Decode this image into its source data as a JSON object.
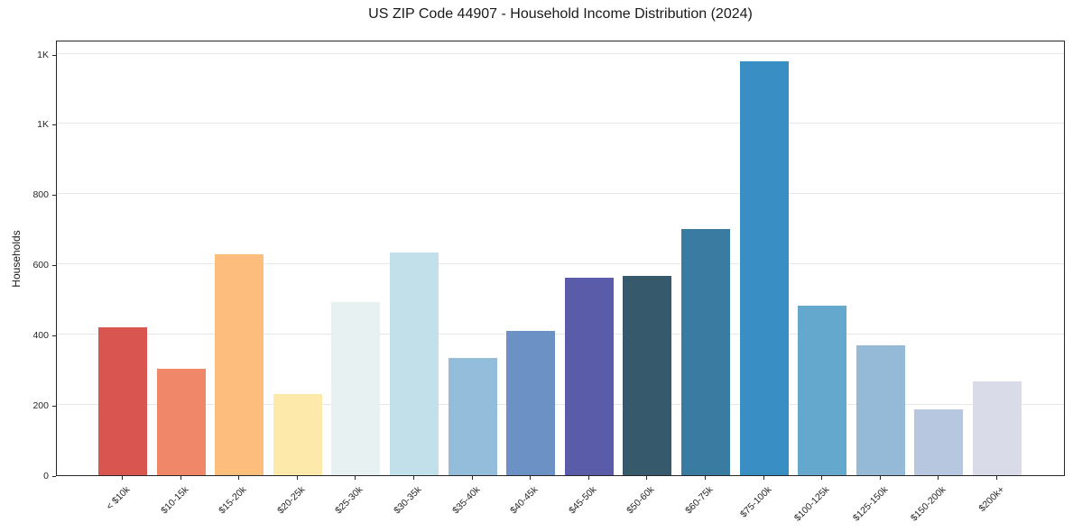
{
  "chart_data": {
    "type": "bar",
    "title": "US ZIP Code 44907 - Household Income Distribution (2024)",
    "xlabel": "",
    "ylabel": "Households",
    "categories": [
      "< $10k",
      "$10-15k",
      "$15-20k",
      "$20-25k",
      "$25-30k",
      "$30-35k",
      "$35-40k",
      "$40-45k",
      "$45-50k",
      "$50-60k",
      "$60-75k",
      "$75-100k",
      "$100-125k",
      "$125-150k",
      "$150-200k",
      "$200k+"
    ],
    "values": [
      420,
      303,
      629,
      230,
      492,
      633,
      333,
      410,
      561,
      567,
      700,
      1179,
      482,
      369,
      187,
      266
    ],
    "bar_colors": [
      "#d9554f",
      "#f08768",
      "#fcbd7d",
      "#fde9a9",
      "#e8f1f2",
      "#c1e0ea",
      "#94bddb",
      "#6c91c5",
      "#5a5ca9",
      "#36596b",
      "#3a7ca1",
      "#398fc4",
      "#64a9cd",
      "#94bad8",
      "#b7c7df",
      "#d9dbe9"
    ],
    "ylim": [
      0,
      1240
    ],
    "yticks": [
      0,
      200,
      400,
      600,
      800,
      1000,
      1200
    ],
    "ytick_labels": [
      "0",
      "200",
      "400",
      "600",
      "800",
      "1K",
      "1K"
    ],
    "grid": "horizontal",
    "legend": "none",
    "plot_bg": "#ffffff",
    "spine_color": "#262626",
    "grid_color": "#e7e7e7",
    "text_color": "#262626"
  }
}
